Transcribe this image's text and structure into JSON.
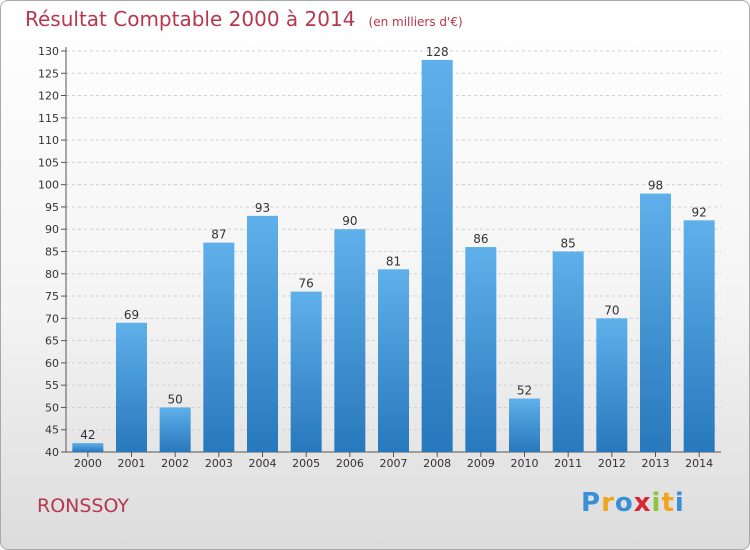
{
  "header": {
    "title": "Résultat Comptable 2000 à 2014",
    "unit": "(en milliers d'€)"
  },
  "footer": {
    "commune": "RONSSOY",
    "logo_letters": [
      "P",
      "r",
      "o",
      "x",
      "i",
      "t",
      "i"
    ],
    "logo_colors": [
      "#3a8fd6",
      "#f2a41e",
      "#3a8fd6",
      "#d8262f",
      "#8cc63f",
      "#f2a41e",
      "#3a8fd6"
    ]
  },
  "colors": {
    "bar_top": "#5fb0ea",
    "bar_bottom": "#2878bd",
    "grid": "#d0d0d0",
    "accent": "#b6374f"
  },
  "chart_data": {
    "type": "bar",
    "title": "Résultat Comptable 2000 à 2014",
    "subtitle": "(en milliers d'€)",
    "categories": [
      "2000",
      "2001",
      "2002",
      "2003",
      "2004",
      "2005",
      "2006",
      "2007",
      "2008",
      "2009",
      "2010",
      "2011",
      "2012",
      "2013",
      "2014"
    ],
    "values": [
      42,
      69,
      50,
      87,
      93,
      76,
      90,
      81,
      128,
      86,
      52,
      85,
      70,
      98,
      92
    ],
    "ylim": [
      40,
      130
    ],
    "yticks": [
      40,
      45,
      50,
      55,
      60,
      65,
      70,
      75,
      80,
      85,
      90,
      95,
      100,
      105,
      110,
      115,
      120,
      125,
      130
    ],
    "grid": true,
    "legend": "none"
  }
}
